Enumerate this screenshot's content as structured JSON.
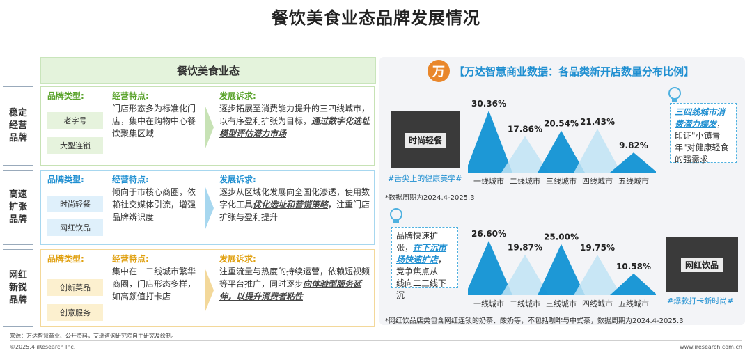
{
  "page_title": "餐饮美食业态品牌发展情况",
  "left": {
    "header": "餐饮美食业态",
    "rows": [
      {
        "label": "稳定经营品牌",
        "brand_type_head": "品牌类型:",
        "types": [
          "老字号",
          "大型连锁"
        ],
        "feature_head": "经营特点:",
        "feature": "门店形态多为标准化门店，集中在购物中心餐饮聚集区域",
        "demand_head": "发展诉求:",
        "demand_plain": "逐步拓展至消费能力提升的三四线城市，以有序盈利扩张为目标，",
        "demand_highlight": "通过数字化选址模型评估潜力市场",
        "demand_tail": ""
      },
      {
        "label": "高速扩张品牌",
        "brand_type_head": "品牌类型:",
        "types": [
          "时尚轻餐",
          "网红饮品"
        ],
        "feature_head": "经营特点:",
        "feature": "倾向于市核心商圈，依赖社交媒体引流，增强品牌辨识度",
        "demand_head": "发展诉求:",
        "demand_plain": "逐步从区域化发展向全国化渗透，使用数字化工具",
        "demand_highlight": "优化选址和营销策略",
        "demand_tail": "，注重门店扩张与盈利提升"
      },
      {
        "label": "网红新锐品牌",
        "brand_type_head": "品牌类型:",
        "types": [
          "创新菜品",
          "创意服务"
        ],
        "feature_head": "经营特点:",
        "feature": "集中在一二线城市繁华商圈，门店形态多样，如高颜值打卡店",
        "demand_head": "发展诉求:",
        "demand_plain": "注重流量与热度的持续运营，依赖短视频等平台推广，同时逐步",
        "demand_highlight": "向体验型服务延伸，以提升消费者粘性",
        "demand_tail": ""
      }
    ]
  },
  "right": {
    "logo_text": "万",
    "title": "【万达智慧商业数据：各品类新开店数量分布比例】",
    "top": {
      "photo_label": "时尚轻餐",
      "tag": "#舌尖上的健康美学#",
      "note": "*数据周期为2024.4-2025.3",
      "callout_highlight": "三四线城市消费潜力爆发",
      "callout_text": "，印证\"小镇青年\"对健康轻食的强需求"
    },
    "bottom": {
      "photo_label": "网红饮品",
      "tag": "#爆款打卡新时尚#",
      "note": "*网红饮品店类包含网红连锁的奶茶、酸奶等，不包括咖啡与中式茶，数据周期为2024.4-2025.3",
      "callout_plain": "品牌快速扩张，",
      "callout_highlight": "在下沉市场快速扩店",
      "callout_tail": "，竞争焦点从一线向二三线下沉"
    }
  },
  "chart_data": [
    {
      "type": "area",
      "title": "",
      "categories": [
        "一线城市",
        "二线城市",
        "三线城市",
        "四线城市",
        "五线城市"
      ],
      "values": [
        30.36,
        17.86,
        20.54,
        21.43,
        9.82
      ],
      "value_labels": [
        "30.36%",
        "17.86%",
        "20.54%",
        "21.43%",
        "9.82%"
      ],
      "unit": "%",
      "ylim": [
        0,
        32
      ]
    },
    {
      "type": "area",
      "title": "",
      "categories": [
        "一线城市",
        "二线城市",
        "三线城市",
        "四线城市",
        "五线城市"
      ],
      "values": [
        26.6,
        19.87,
        25.0,
        19.75,
        10.58
      ],
      "value_labels": [
        "26.60%",
        "19.87%",
        "25.00%",
        "19.75%",
        "10.58%"
      ],
      "unit": "%",
      "ylim": [
        0,
        32
      ]
    }
  ],
  "footer": {
    "source": "来源：万达智慧商业、公开资料，艾瑞咨询研究院自主研究及绘制。",
    "copyright": "©2025.4 iResearch Inc.",
    "url": "www.iresearch.com.cn"
  },
  "colors": {
    "accent_blue": "#1f8fd1",
    "peak_dark": "#0b8fd3",
    "peak_light": "#bfe3f5",
    "green": "#5aa32b",
    "gold": "#e0a010"
  }
}
